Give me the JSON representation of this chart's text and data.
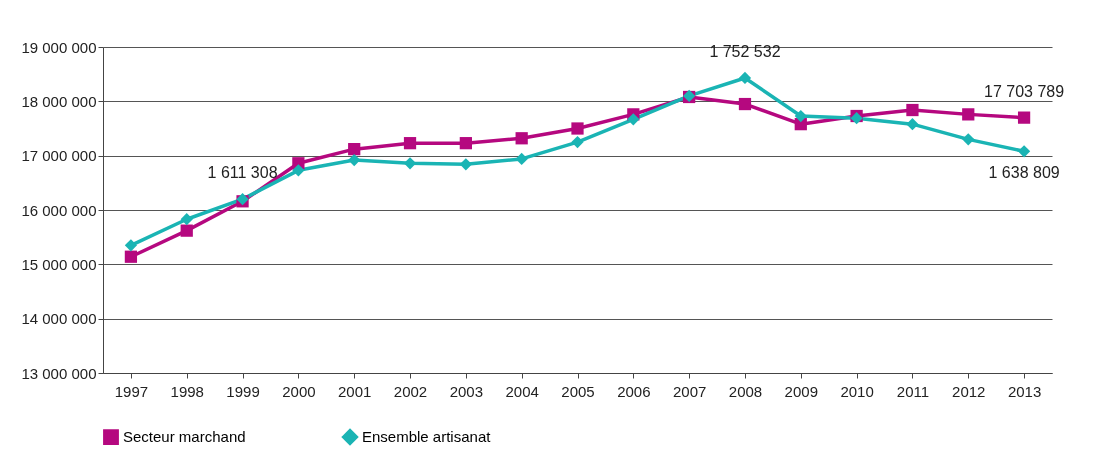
{
  "chart_data": {
    "type": "line",
    "categories": [
      "1997",
      "1998",
      "1999",
      "2000",
      "2001",
      "2002",
      "2003",
      "2004",
      "2005",
      "2006",
      "2007",
      "2008",
      "2009",
      "2010",
      "2011",
      "2012",
      "2013"
    ],
    "series": [
      {
        "name": "Secteur marchand",
        "color": "#b5087f",
        "marker": "square",
        "values": [
          15140000.0,
          15620000.0,
          16160000.0,
          16860000.0,
          17120000.0,
          17230000.0,
          17230000.0,
          17320000.0,
          17500000.0,
          17760000.0,
          18080000.0,
          17950000.0,
          17580000.0,
          17730000.0,
          17840000.0,
          17760000.0,
          17700000.0
        ]
      },
      {
        "name": "Ensemble artisanat",
        "color": "#1ab4b4",
        "marker": "diamond",
        "values": [
          15350000.0,
          15830000.0,
          16200000.0,
          16730000.0,
          16920000.0,
          16860000.0,
          16840000.0,
          16940000.0,
          17250000.0,
          17670000.0,
          18100000.0,
          18430000.0,
          17730000.0,
          17690000.0,
          17580000.0,
          17300000.0,
          17080000.0
        ]
      }
    ],
    "ylim": [
      13000000,
      19000000
    ],
    "yticks": [
      {
        "value": 13000000,
        "label": "13 000 000"
      },
      {
        "value": 14000000,
        "label": "14 000 000"
      },
      {
        "value": 15000000,
        "label": "15 000 000"
      },
      {
        "value": 16000000,
        "label": "16 000 000"
      },
      {
        "value": 17000000,
        "label": "17 000 000"
      },
      {
        "value": 18000000,
        "label": "18 000 000"
      },
      {
        "value": 19000000,
        "label": "19 000 000"
      }
    ],
    "grid": "y",
    "legend": "bottom left",
    "line_style": "solid",
    "annotations": [
      {
        "text": "1 611 308",
        "x": "1999",
        "y": 16200000
      },
      {
        "text": "1 752 532",
        "x": "2008",
        "y": 18430000
      },
      {
        "text": "17 703 789",
        "x": "2013",
        "y": 17700000
      },
      {
        "text": "1 638 809",
        "x": "2013",
        "y": 17080000
      }
    ]
  }
}
